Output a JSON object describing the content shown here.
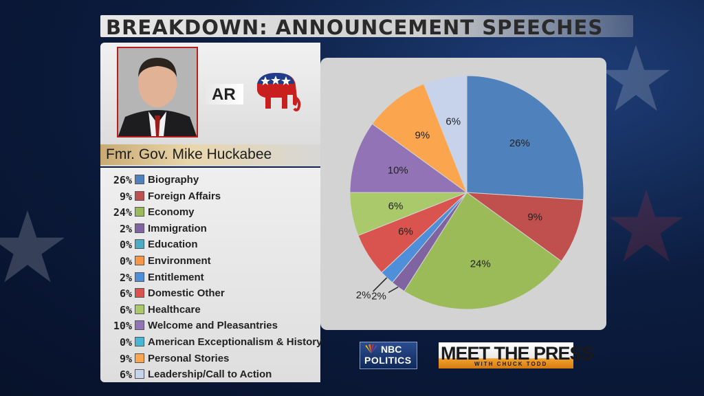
{
  "title": "BREAKDOWN: ANNOUNCEMENT SPEECHES",
  "profile": {
    "state": "AR",
    "name": "Fmr. Gov. Mike Huckabee"
  },
  "logos": {
    "nbc_top": "NBC",
    "nbc_bottom": "POLITICS",
    "mtp_main": "MEET THE PRESS",
    "mtp_sub": "WITH CHUCK TODD"
  },
  "chart_data": {
    "type": "pie",
    "title": "",
    "start": "top, clockwise",
    "slices": [
      {
        "label": "Biography",
        "value": 26,
        "pct_label": "26%",
        "color": "#4f81bd"
      },
      {
        "label": "Foreign Affairs",
        "value": 9,
        "pct_label": "9%",
        "color": "#c0504d"
      },
      {
        "label": "Economy",
        "value": 24,
        "pct_label": "24%",
        "color": "#9bbb59"
      },
      {
        "label": "Immigration",
        "value": 2,
        "pct_label": "2%",
        "color": "#8064a2"
      },
      {
        "label": "Education",
        "value": 0,
        "pct_label": "0%",
        "color": "#4bacc6"
      },
      {
        "label": "Environment",
        "value": 0,
        "pct_label": "0%",
        "color": "#f79646"
      },
      {
        "label": "Entitlement",
        "value": 2,
        "pct_label": "2%",
        "color": "#4f8fd9"
      },
      {
        "label": "Domestic Other",
        "value": 6,
        "pct_label": "6%",
        "color": "#d9534f"
      },
      {
        "label": "Healthcare",
        "value": 6,
        "pct_label": "6%",
        "color": "#a9c96a"
      },
      {
        "label": "Welcome and Pleasantries",
        "value": 10,
        "pct_label": "10%",
        "color": "#9273b5"
      },
      {
        "label": "American Exceptionalism & History",
        "value": 0,
        "pct_label": "0%",
        "color": "#46b8d6"
      },
      {
        "label": "Personal Stories",
        "value": 9,
        "pct_label": "9%",
        "color": "#fba54f"
      },
      {
        "label": "Leadership/Call to Action",
        "value": 6,
        "pct_label": "6%",
        "color": "#c6d3ea"
      }
    ]
  }
}
